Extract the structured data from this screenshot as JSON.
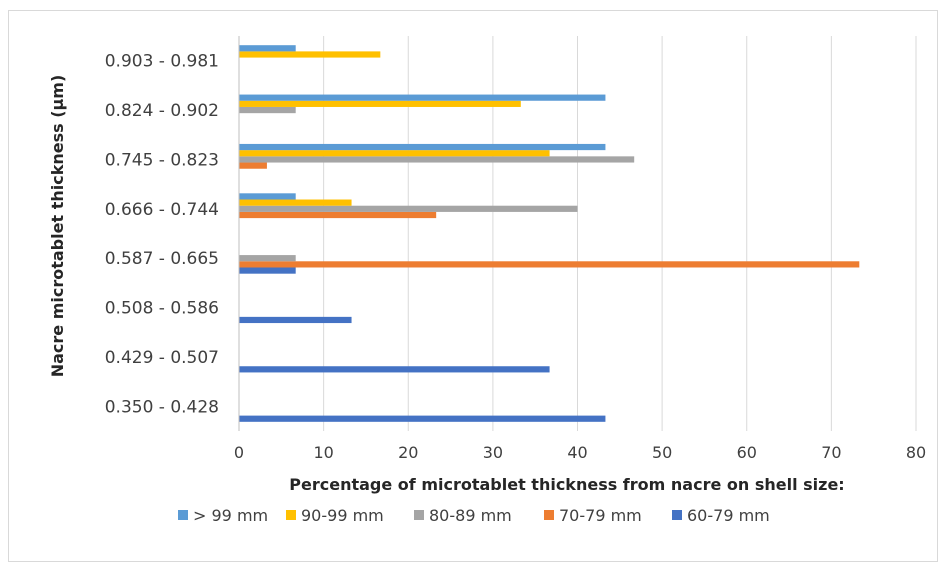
{
  "chart_data": {
    "type": "bar",
    "orientation": "horizontal",
    "title": "",
    "ylabel": "Nacre microtablet thickness (µm)",
    "xlabel": "Percentage of microtablet thickness from nacre on shell size:",
    "xlim": [
      0,
      80
    ],
    "xticks": [
      "0",
      "10",
      "20",
      "30",
      "40",
      "50",
      "60",
      "70",
      "80"
    ],
    "grid": "vertical",
    "legend_position": "bottom",
    "categories": [
      "0.350 - 0.428",
      "0.429 - 0.507",
      "0.508 - 0.586",
      "0.587 - 0.665",
      "0.666 - 0.744",
      "0.745 - 0.823",
      "0.824 - 0.902",
      "0.903 - 0.981"
    ],
    "series": [
      {
        "name": "60-79 mm",
        "color": "#4472C4",
        "values": [
          43.3,
          36.7,
          13.3,
          6.7,
          0,
          0,
          0,
          0
        ]
      },
      {
        "name": "70-79 mm",
        "color": "#ED7D31",
        "values": [
          0,
          0,
          0,
          73.3,
          23.3,
          3.3,
          0,
          0
        ]
      },
      {
        "name": "80-89 mm",
        "color": "#A5A5A5",
        "values": [
          0,
          0,
          0,
          6.7,
          40.0,
          46.7,
          6.7,
          0
        ]
      },
      {
        "name": "90-99 mm",
        "color": "#FFC000",
        "values": [
          0,
          0,
          0,
          0,
          13.3,
          36.7,
          33.3,
          16.7
        ]
      },
      {
        "name": "> 99 mm",
        "color": "#5B9BD5",
        "values": [
          0,
          0,
          0,
          0,
          6.7,
          43.3,
          43.3,
          6.7
        ]
      }
    ],
    "legend_order": [
      "> 99 mm",
      "90-99 mm",
      "80-89 mm",
      "70-79 mm",
      "60-79 mm"
    ]
  }
}
